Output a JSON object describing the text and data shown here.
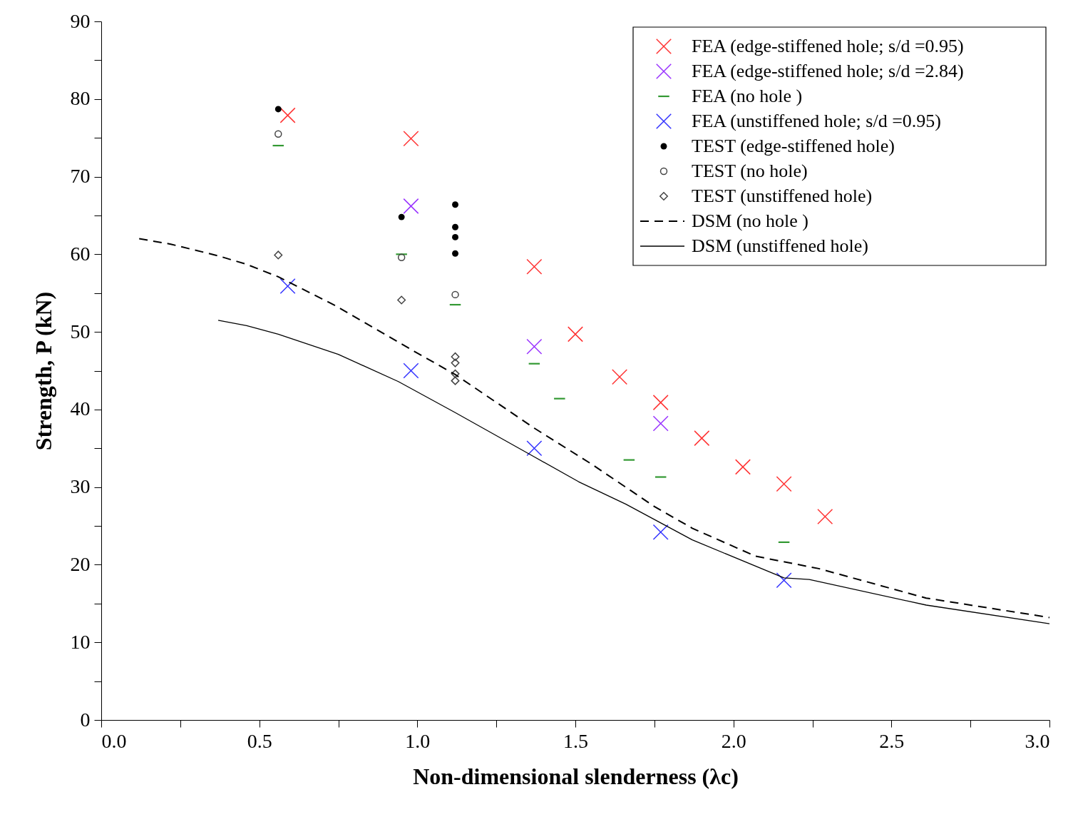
{
  "chart_data": {
    "type": "scatter",
    "xlabel": "Non-dimensional slenderness (λc)",
    "ylabel": "Strength, P (kN)",
    "xlim": [
      0,
      3
    ],
    "ylim": [
      0,
      90
    ],
    "xticks": [
      {
        "value": 0,
        "label": "0.0"
      },
      {
        "value": 0.25,
        "label": null
      },
      {
        "value": 0.5,
        "label": "0.5"
      },
      {
        "value": 0.75,
        "label": null
      },
      {
        "value": 1,
        "label": "1.0"
      },
      {
        "value": 1.25,
        "label": null
      },
      {
        "value": 1.5,
        "label": "1.5"
      },
      {
        "value": 1.75,
        "label": null
      },
      {
        "value": 2,
        "label": "2.0"
      },
      {
        "value": 2.25,
        "label": null
      },
      {
        "value": 2.5,
        "label": "2.5"
      },
      {
        "value": 2.75,
        "label": null
      },
      {
        "value": 3,
        "label": "3.0"
      }
    ],
    "yticks": [
      0,
      {
        "value": 5,
        "label": null
      },
      10,
      {
        "value": 15,
        "label": null
      },
      20,
      {
        "value": 25,
        "label": null
      },
      30,
      {
        "value": 35,
        "label": null
      },
      40,
      {
        "value": 45,
        "label": null
      },
      50,
      {
        "value": 55,
        "label": null
      },
      60,
      {
        "value": 65,
        "label": null
      },
      70,
      {
        "value": 75,
        "label": null
      },
      80,
      {
        "value": 85,
        "label": null
      },
      90
    ],
    "grid": false,
    "legend": "top right",
    "series": [
      {
        "name": "FEA (edge-stiffened hole; s/d =0.95)",
        "marker": "cross",
        "color": "#ff3333",
        "x": [
          0.59,
          0.98,
          1.37,
          1.5,
          1.64,
          1.77,
          1.9,
          2.03,
          2.16,
          2.29
        ],
        "values": [
          77.9,
          74.9,
          58.4,
          49.7,
          44.2,
          40.9,
          36.3,
          32.6,
          30.4,
          26.2
        ]
      },
      {
        "name": "FEA (edge-stiffened hole; s/d =2.84)",
        "marker": "cross",
        "color": "#9933ff",
        "x": [
          0.98,
          1.37,
          1.77
        ],
        "values": [
          66.2,
          48.1,
          38.2
        ]
      },
      {
        "name": "FEA (no hole )",
        "color": "#339933",
        "x": [
          0.56,
          0.95,
          1.12,
          1.37,
          1.45,
          1.67,
          1.77,
          2.16
        ],
        "values": [
          74.0,
          60.0,
          53.5,
          45.9,
          41.4,
          33.5,
          31.3,
          22.9
        ]
      },
      {
        "name": "FEA (unstiffened hole; s/d =0.95)",
        "marker": "cross",
        "color": "#3333ff",
        "x": [
          0.59,
          0.98,
          1.37,
          1.77,
          2.16
        ],
        "values": [
          55.9,
          45.0,
          35.0,
          24.2,
          18.0
        ]
      },
      {
        "name": "TEST (edge-stiffened hole)",
        "marker": "circle",
        "color": "#000000",
        "x": [
          0.56,
          0.95,
          1.12,
          1.12,
          1.12,
          1.12
        ],
        "values": [
          78.7,
          64.8,
          66.4,
          63.5,
          62.2,
          60.1
        ]
      },
      {
        "name": "TEST (no hole)",
        "marker": "circle",
        "color": "#444444",
        "x": [
          0.56,
          0.95,
          1.12
        ],
        "values": [
          75.5,
          59.6,
          54.8
        ]
      },
      {
        "name": "TEST (unstiffened hole)",
        "marker": "diamond",
        "color": "#444444",
        "x": [
          0.56,
          0.95,
          1.12,
          1.12,
          1.12,
          1.12
        ],
        "values": [
          59.9,
          54.1,
          46.8,
          46.0,
          44.6,
          43.7
        ]
      },
      {
        "name": "DSM (no hole )",
        "type": "line",
        "line_style": "dashed",
        "color": "#000000",
        "x": [
          0.12,
          0.22,
          0.37,
          0.46,
          0.56,
          0.74,
          0.99,
          1.12,
          1.37,
          1.55,
          1.75,
          1.87,
          2.07,
          2.27,
          2.61,
          3.0
        ],
        "values": [
          62.0,
          61.3,
          59.8,
          58.7,
          57.1,
          53.4,
          47.5,
          44.5,
          37.6,
          33.0,
          27.5,
          24.7,
          21.1,
          19.5,
          15.7,
          13.2
        ]
      },
      {
        "name": "DSM (unstiffened hole)",
        "type": "line",
        "line_style": "solid",
        "color": "#000000",
        "x": [
          0.37,
          0.46,
          0.56,
          0.75,
          0.94,
          1.12,
          1.37,
          1.51,
          1.66,
          1.87,
          2.16,
          2.24,
          2.61,
          3.0
        ],
        "values": [
          51.5,
          50.8,
          49.7,
          47.1,
          43.6,
          39.6,
          33.9,
          30.7,
          27.8,
          23.2,
          18.3,
          18.1,
          14.8,
          12.4
        ]
      }
    ]
  }
}
